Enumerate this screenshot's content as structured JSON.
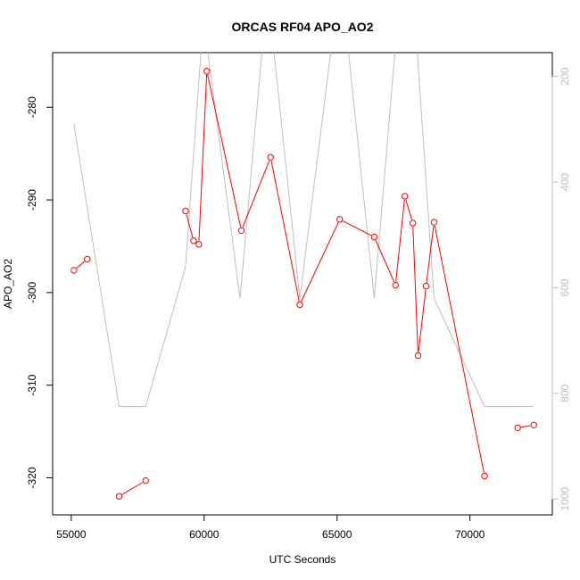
{
  "chart_data": {
    "type": "line",
    "title": "ORCAS RF04 APO_AO2",
    "xlabel": "UTC Seconds",
    "ylabel": "APO_AO2",
    "xlim": [
      54300,
      73100
    ],
    "ylim": [
      -324,
      -274.1
    ],
    "x_ticks": [
      55000,
      60000,
      65000,
      70000
    ],
    "y_ticks": [
      -320,
      -310,
      -300,
      -290,
      -280
    ],
    "grid": false,
    "legend": "none",
    "series": [
      {
        "color": "#ff0000",
        "marker": "open-circle",
        "segments": [
          [
            [
              55100,
              -297.6
            ],
            [
              55600,
              -296.4
            ]
          ],
          [
            [
              56800,
              -322.0
            ],
            [
              57800,
              -320.3
            ]
          ],
          [
            [
              59300,
              -291.2
            ],
            [
              59600,
              -294.4
            ],
            [
              59800,
              -294.8
            ],
            [
              60100,
              -276.1
            ],
            [
              61400,
              -293.3
            ],
            [
              62500,
              -285.4
            ],
            [
              63600,
              -301.3
            ],
            [
              65100,
              -292.1
            ],
            [
              66400,
              -294.0
            ],
            [
              67200,
              -299.2
            ],
            [
              67550,
              -289.6
            ],
            [
              67850,
              -292.5
            ],
            [
              68050,
              -306.8
            ],
            [
              68350,
              -299.3
            ],
            [
              68650,
              -292.4
            ],
            [
              70550,
              -319.8
            ]
          ],
          [
            [
              71800,
              -314.6
            ],
            [
              72400,
              -314.3
            ]
          ]
        ]
      },
      {
        "color": "#bebebe",
        "axis": "right",
        "ylim": [
          1030,
          155
        ],
        "y_ticks": [
          200,
          400,
          600,
          800,
          1000
        ],
        "points": [
          [
            55100,
            290
          ],
          [
            56800,
            825
          ],
          [
            57800,
            825
          ],
          [
            59300,
            560
          ],
          [
            59900,
            140
          ],
          [
            60100,
            140
          ],
          [
            61350,
            620
          ],
          [
            62200,
            140
          ],
          [
            62600,
            140
          ],
          [
            63600,
            620
          ],
          [
            64800,
            140
          ],
          [
            65400,
            140
          ],
          [
            66400,
            620
          ],
          [
            67200,
            140
          ],
          [
            68000,
            140
          ],
          [
            68650,
            620
          ],
          [
            70550,
            825
          ],
          [
            72400,
            825
          ]
        ]
      }
    ]
  }
}
